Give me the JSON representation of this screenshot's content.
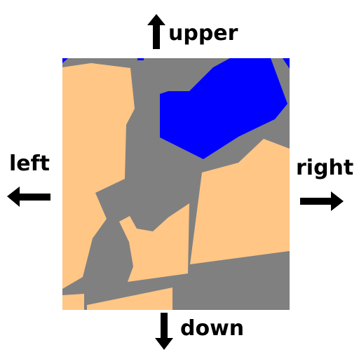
{
  "directions": {
    "upper": "upper",
    "left": "left",
    "right": "right",
    "down": "down"
  },
  "icons": {
    "upper": "arrow-up-icon",
    "left": "arrow-left-icon",
    "right": "arrow-right-icon",
    "down": "arrow-down-icon"
  },
  "legend_colors": {
    "road": "#808080",
    "building": "#FFC685",
    "water": "#0000FF",
    "background": "#FFFFFF",
    "arrow": "#000000"
  }
}
